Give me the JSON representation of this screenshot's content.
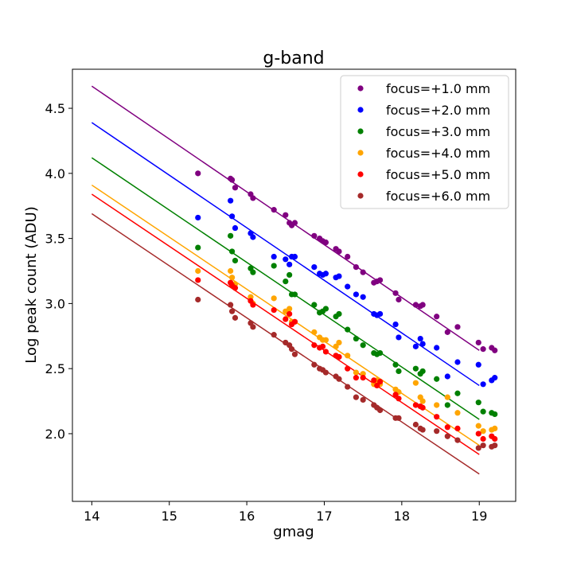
{
  "chart_data": {
    "type": "scatter",
    "title": "g-band",
    "xlabel": "gmag",
    "ylabel": "Log peak count (ADU)",
    "xlim": [
      13.75,
      19.47
    ],
    "ylim": [
      1.48,
      4.8
    ],
    "xticks": [
      14,
      15,
      16,
      17,
      18,
      19
    ],
    "yticks": [
      2.0,
      2.5,
      3.0,
      3.5,
      4.0,
      4.5
    ],
    "legend_position": "top-right",
    "grid": false,
    "x": [
      15.37,
      15.79,
      15.81,
      15.85,
      16.05,
      16.08,
      16.35,
      16.5,
      16.55,
      16.58,
      16.62,
      16.87,
      16.94,
      16.98,
      17.02,
      17.15,
      17.19,
      17.3,
      17.41,
      17.5,
      17.64,
      17.68,
      17.72,
      17.92,
      17.96,
      18.18,
      18.24,
      18.27,
      18.45,
      18.59,
      18.72,
      18.99,
      19.05,
      19.16,
      19.2
    ],
    "series": [
      {
        "name": "focus=+1.0 mm",
        "color": "#800080",
        "y": [
          4.0,
          3.96,
          3.95,
          3.89,
          3.84,
          3.81,
          3.72,
          3.68,
          3.62,
          3.6,
          3.62,
          3.52,
          3.5,
          3.48,
          3.47,
          3.42,
          3.4,
          3.36,
          3.28,
          3.24,
          3.16,
          3.17,
          3.18,
          3.08,
          3.03,
          2.99,
          2.98,
          2.99,
          2.9,
          2.78,
          2.82,
          2.7,
          2.65,
          2.66,
          2.64
        ]
      },
      {
        "name": "focus=+2.0 mm",
        "color": "#0000ff",
        "y": [
          3.66,
          3.79,
          3.67,
          3.58,
          3.54,
          3.51,
          3.36,
          3.34,
          3.3,
          3.36,
          3.36,
          3.28,
          3.23,
          3.22,
          3.23,
          3.2,
          3.21,
          3.13,
          3.07,
          3.05,
          2.92,
          2.91,
          2.92,
          2.84,
          2.74,
          2.67,
          2.73,
          2.69,
          2.66,
          2.44,
          2.55,
          2.53,
          2.38,
          2.41,
          2.43
        ]
      },
      {
        "name": "focus=+3.0 mm",
        "color": "#008000",
        "y": [
          3.43,
          3.52,
          3.4,
          3.33,
          3.27,
          3.24,
          3.29,
          3.17,
          3.22,
          3.07,
          3.07,
          2.99,
          2.93,
          2.94,
          2.96,
          2.9,
          2.92,
          2.8,
          2.73,
          2.68,
          2.62,
          2.61,
          2.62,
          2.53,
          2.48,
          2.5,
          2.46,
          2.48,
          2.42,
          2.22,
          2.31,
          2.24,
          2.17,
          2.16,
          2.15
        ]
      },
      {
        "name": "focus=+4.0 mm",
        "color": "#ffa500",
        "y": [
          3.25,
          3.25,
          3.2,
          3.15,
          3.05,
          3.0,
          3.04,
          2.94,
          2.96,
          2.86,
          2.86,
          2.78,
          2.74,
          2.72,
          2.72,
          2.67,
          2.7,
          2.6,
          2.47,
          2.46,
          2.38,
          2.41,
          2.38,
          2.34,
          2.32,
          2.39,
          2.28,
          2.25,
          2.22,
          2.28,
          2.16,
          2.06,
          2.02,
          2.03,
          2.04
        ]
      },
      {
        "name": "focus=+5.0 mm",
        "color": "#ff0000",
        "y": [
          3.18,
          3.16,
          3.14,
          3.12,
          3.02,
          2.99,
          2.95,
          2.88,
          2.92,
          2.84,
          2.86,
          2.68,
          2.66,
          2.67,
          2.63,
          2.6,
          2.59,
          2.5,
          2.43,
          2.43,
          2.41,
          2.37,
          2.4,
          2.3,
          2.27,
          2.22,
          2.21,
          2.2,
          2.13,
          2.05,
          2.04,
          2.0,
          1.96,
          1.98,
          1.96
        ]
      },
      {
        "name": "focus=+6.0 mm",
        "color": "#a52a2a",
        "y": [
          3.03,
          2.99,
          2.94,
          2.89,
          2.85,
          2.82,
          2.76,
          2.7,
          2.68,
          2.65,
          2.61,
          2.53,
          2.5,
          2.49,
          2.47,
          2.44,
          2.42,
          2.36,
          2.28,
          2.26,
          2.22,
          2.2,
          2.18,
          2.12,
          2.12,
          2.07,
          2.04,
          2.03,
          2.02,
          1.98,
          1.95,
          1.89,
          1.91,
          1.9,
          1.91
        ]
      }
    ],
    "fit_lines": [
      {
        "name": "focus=+1.0 mm",
        "color": "#800080",
        "x": [
          14,
          19
        ],
        "y": [
          4.67,
          2.64
        ]
      },
      {
        "name": "focus=+2.0 mm",
        "color": "#0000ff",
        "x": [
          14,
          19
        ],
        "y": [
          4.39,
          2.37
        ]
      },
      {
        "name": "focus=+3.0 mm",
        "color": "#008000",
        "x": [
          14,
          19
        ],
        "y": [
          4.12,
          2.11
        ]
      },
      {
        "name": "focus=+4.0 mm",
        "color": "#ffa500",
        "x": [
          14,
          19
        ],
        "y": [
          3.91,
          1.91
        ]
      },
      {
        "name": "focus=+5.0 mm",
        "color": "#ff0000",
        "x": [
          14,
          19
        ],
        "y": [
          3.84,
          1.84
        ]
      },
      {
        "name": "focus=+6.0 mm",
        "color": "#a52a2a",
        "x": [
          14,
          19
        ],
        "y": [
          3.69,
          1.69
        ]
      }
    ]
  }
}
